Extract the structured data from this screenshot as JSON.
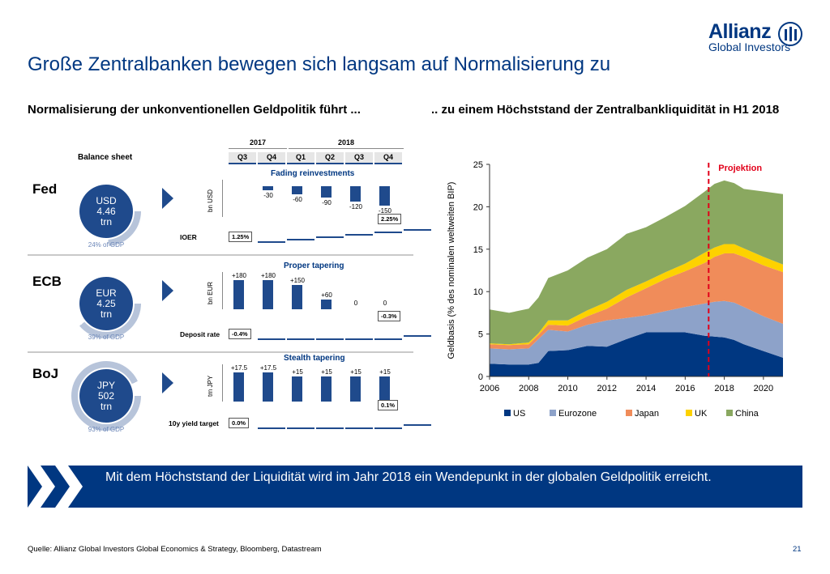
{
  "title": "Große Zentralbanken bewegen sich langsam auf Normalisierung zu",
  "logo": {
    "name": "Allianz",
    "sub": "Global Investors"
  },
  "left": {
    "heading": "Normalisierung der unkonventionellen Geldpolitik führt ...",
    "balance_sheet": "Balance sheet",
    "years": [
      "2017",
      "2018"
    ],
    "quarters": [
      "Q3",
      "Q4",
      "Q1",
      "Q2",
      "Q3",
      "Q4"
    ],
    "banks": [
      {
        "name": "Fed",
        "circle": [
          "USD",
          "4.46",
          "trn"
        ],
        "gdp": "24% of GDP",
        "gdp_share": 0.24,
        "subtitle": "Fading reinvestments",
        "unit": "bn USD",
        "values": [
          0,
          -30,
          -60,
          -90,
          -120,
          -150
        ],
        "labels": [
          "",
          "-30",
          "-60",
          "-90",
          "-120",
          "-150"
        ],
        "rate_label": "IOER",
        "rate_start": "1.25%",
        "rate_end": "2.25%"
      },
      {
        "name": "ECB",
        "circle": [
          "EUR",
          "4.25",
          "trn"
        ],
        "gdp": "39% of GDP",
        "gdp_share": 0.39,
        "subtitle": "Proper tapering",
        "unit": "bn EUR",
        "values": [
          180,
          180,
          150,
          60,
          0,
          0
        ],
        "labels": [
          "+180",
          "+180",
          "+150",
          "+60",
          "0",
          "0"
        ],
        "rate_label": "Deposit rate",
        "rate_start": "-0.4%",
        "rate_end": "-0.3%"
      },
      {
        "name": "BoJ",
        "circle": [
          "JPY",
          "502",
          "trn"
        ],
        "gdp": "93% of GDP",
        "gdp_share": 0.93,
        "subtitle": "Stealth tapering",
        "unit": "trn JPY",
        "values": [
          17.5,
          17.5,
          15,
          15,
          15,
          15
        ],
        "labels": [
          "+17.5",
          "+17.5",
          "+15",
          "+15",
          "+15",
          "+15"
        ],
        "rate_label": "10y yield target",
        "rate_start": "0.0%",
        "rate_end": "0.1%"
      }
    ]
  },
  "right": {
    "heading": ".. zu einem Höchststand der Zentralbankliquidität in H1 2018"
  },
  "chart_data": {
    "type": "area",
    "stacked": true,
    "ylabel": "Geldbasis (% des nominalen weltweiten BIP)",
    "xlabel": "",
    "ylim": [
      0,
      25
    ],
    "xlim": [
      2006,
      2021
    ],
    "yticks": [
      0,
      5,
      10,
      15,
      20,
      25
    ],
    "xticks": [
      2006,
      2008,
      2010,
      2012,
      2014,
      2016,
      2018,
      2020
    ],
    "annotation": {
      "text": "Projektion",
      "x": 2017.2
    },
    "legend_position": "bottom",
    "x": [
      2006,
      2007,
      2008,
      2008.5,
      2009,
      2010,
      2011,
      2012,
      2013,
      2014,
      2015,
      2016,
      2017,
      2017.5,
      2018,
      2018.5,
      2019,
      2020,
      2021
    ],
    "series": [
      {
        "name": "US",
        "color": "#003781",
        "values": [
          1.5,
          1.4,
          1.4,
          1.6,
          3.0,
          3.1,
          3.6,
          3.5,
          4.4,
          5.2,
          5.2,
          5.2,
          4.8,
          4.7,
          4.6,
          4.3,
          3.8,
          3.0,
          2.2
        ]
      },
      {
        "name": "Eurozone",
        "color": "#8da2c9",
        "values": [
          1.8,
          1.8,
          1.9,
          2.8,
          2.5,
          2.2,
          2.5,
          3.1,
          2.5,
          2.0,
          2.5,
          3.0,
          3.8,
          4.1,
          4.3,
          4.4,
          4.4,
          4.1,
          4.0
        ]
      },
      {
        "name": "Japan",
        "color": "#f08c5a",
        "values": [
          0.5,
          0.5,
          0.5,
          0.5,
          0.6,
          0.7,
          1.0,
          1.4,
          2.4,
          3.2,
          3.8,
          4.2,
          4.8,
          5.3,
          5.6,
          5.8,
          5.9,
          6.0,
          6.1
        ]
      },
      {
        "name": "UK",
        "color": "#fdd200",
        "values": [
          0.1,
          0.1,
          0.2,
          0.2,
          0.5,
          0.6,
          0.7,
          0.8,
          0.9,
          0.8,
          0.8,
          0.9,
          1.2,
          1.1,
          1.1,
          1.1,
          1.0,
          1.0,
          0.9
        ]
      },
      {
        "name": "China",
        "color": "#8aa860",
        "values": [
          4.0,
          3.7,
          4.0,
          4.2,
          5.0,
          5.9,
          6.2,
          6.2,
          6.6,
          6.4,
          6.5,
          6.8,
          7.2,
          7.5,
          7.5,
          7.2,
          7.0,
          7.7,
          8.3
        ]
      }
    ]
  },
  "banner": "Mit dem Höchststand der Liquidität wird im Jahr 2018 ein Wendepunkt in der globalen Geldpolitik erreicht.",
  "source": "Quelle: Allianz Global Investors Global Economics & Strategy, Bloomberg, Datastream",
  "page_number": "21"
}
